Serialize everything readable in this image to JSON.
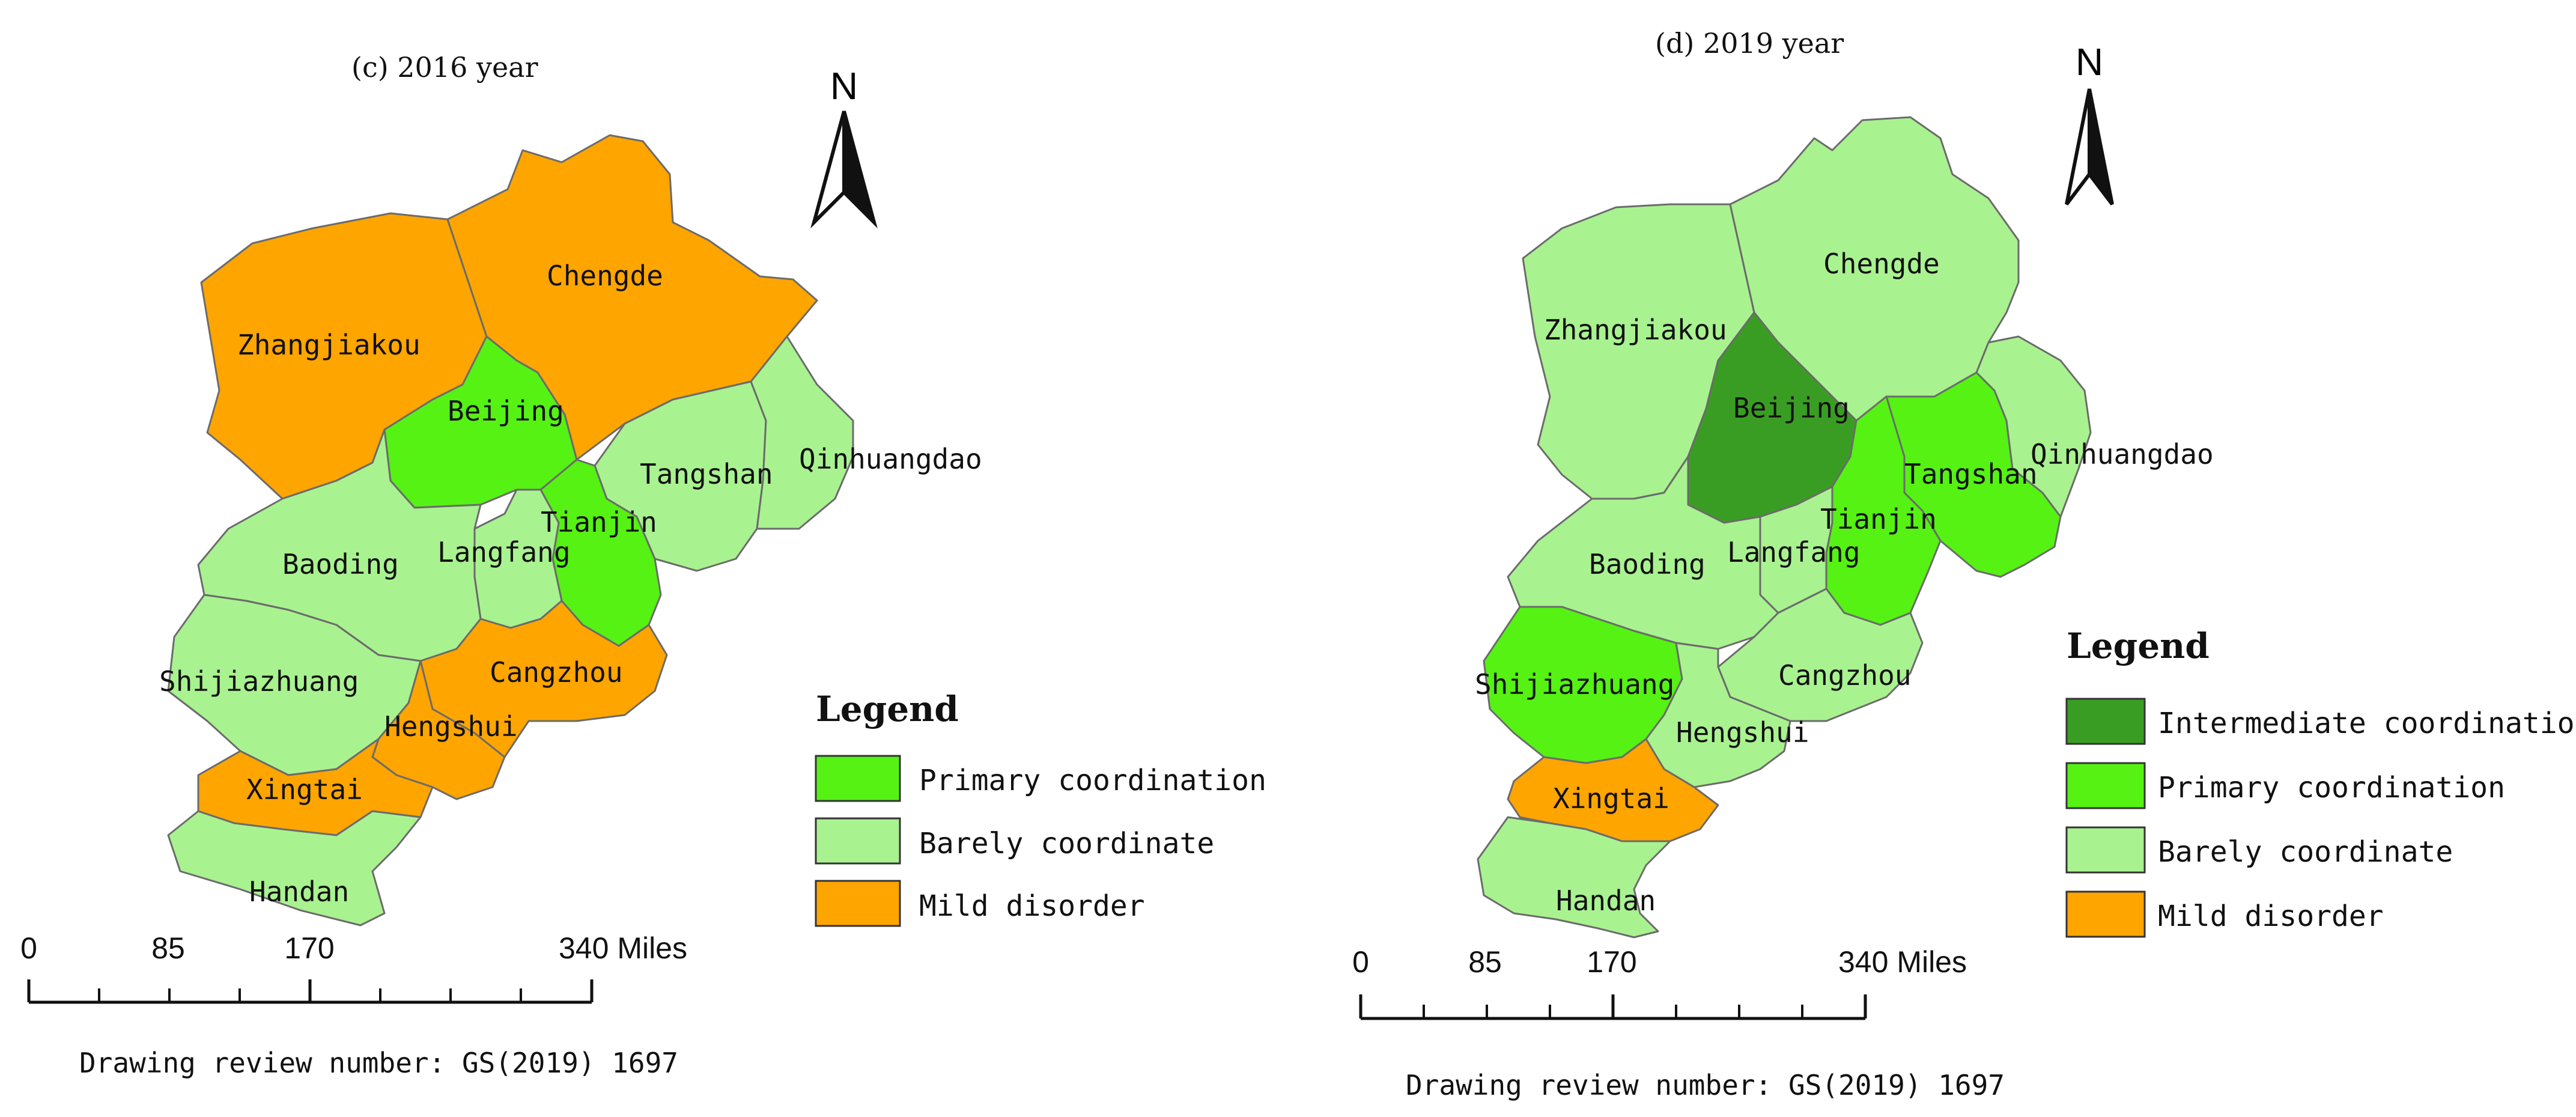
{
  "colors": {
    "intermediate": "#3a9d23",
    "primary": "#55f214",
    "barely": "#a9f290",
    "mild": "#ffa500"
  },
  "maps": [
    {
      "title": "(c) 2016 year",
      "north": "N",
      "regions": [
        {
          "name": "Zhangjiakou",
          "category": "mild"
        },
        {
          "name": "Chengde",
          "category": "mild"
        },
        {
          "name": "Beijing",
          "category": "primary"
        },
        {
          "name": "Tangshan",
          "category": "barely"
        },
        {
          "name": "Qinhuangdao",
          "category": "barely"
        },
        {
          "name": "Tianjin",
          "category": "primary"
        },
        {
          "name": "Langfang",
          "category": "barely"
        },
        {
          "name": "Baoding",
          "category": "barely"
        },
        {
          "name": "Shijiazhuang",
          "category": "barely"
        },
        {
          "name": "Cangzhou",
          "category": "mild"
        },
        {
          "name": "Hengshui",
          "category": "mild"
        },
        {
          "name": "Xingtai",
          "category": "mild"
        },
        {
          "name": "Handan",
          "category": "barely"
        }
      ],
      "legend": {
        "title": "Legend",
        "items": [
          {
            "label": "Primary coordination",
            "category": "primary"
          },
          {
            "label": "Barely coordinate",
            "category": "barely"
          },
          {
            "label": "Mild disorder",
            "category": "mild"
          }
        ]
      },
      "scale": {
        "ticks": [
          "0",
          "85",
          "170",
          "340 Miles"
        ]
      },
      "review": "Drawing review number: GS(2019) 1697"
    },
    {
      "title": "(d) 2019 year",
      "north": "N",
      "regions": [
        {
          "name": "Zhangjiakou",
          "category": "barely"
        },
        {
          "name": "Chengde",
          "category": "barely"
        },
        {
          "name": "Beijing",
          "category": "intermediate"
        },
        {
          "name": "Tangshan",
          "category": "primary"
        },
        {
          "name": "Qinhuangdao",
          "category": "barely"
        },
        {
          "name": "Tianjin",
          "category": "primary"
        },
        {
          "name": "Langfang",
          "category": "barely"
        },
        {
          "name": "Baoding",
          "category": "barely"
        },
        {
          "name": "Shijiazhuang",
          "category": "primary"
        },
        {
          "name": "Cangzhou",
          "category": "barely"
        },
        {
          "name": "Hengshui",
          "category": "barely"
        },
        {
          "name": "Xingtai",
          "category": "mild"
        },
        {
          "name": "Handan",
          "category": "barely"
        }
      ],
      "legend": {
        "title": "Legend",
        "items": [
          {
            "label": "Intermediate coordination",
            "category": "intermediate"
          },
          {
            "label": "Primary coordination",
            "category": "primary"
          },
          {
            "label": "Barely coordinate",
            "category": "barely"
          },
          {
            "label": "Mild disorder",
            "category": "mild"
          }
        ]
      },
      "scale": {
        "ticks": [
          "0",
          "85",
          "170",
          "340 Miles"
        ]
      },
      "review": "Drawing review number: GS(2019) 1697"
    }
  ]
}
